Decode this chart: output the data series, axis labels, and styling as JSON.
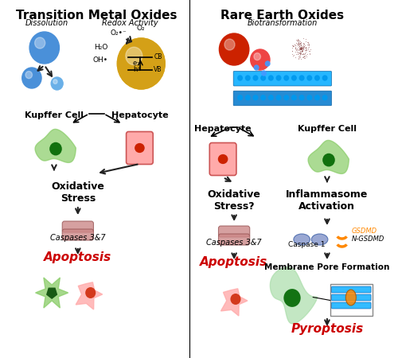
{
  "title_left": "Transition Metal Oxides",
  "title_right": "Rare Earth Oxides",
  "left_italic1": "Dissolution",
  "left_italic2": "Redox Activity",
  "right_italic1": "Biotransformation",
  "kupffer_cell": "Kupffer Cell",
  "hepatocyte": "Hepatocyte",
  "oxidative_stress": "Oxidative\nStress",
  "oxidative_stress_q": "Oxidative\nStress?",
  "inflammasome": "Inflammasome\nActivation",
  "caspases37": "Caspases 3&7",
  "caspase1": "Caspase 1",
  "gsdmd": "GSDMD",
  "ngsdmd": "N-GSDMD",
  "membrane_pore": "Membrane Pore Formation",
  "apoptosis": "Apoptosis",
  "pyroptosis": "Pyroptosis",
  "blue_sphere": "#4a90d9",
  "gold_sphere": "#d4a017",
  "red_sphere": "#cc2200",
  "green_cell": "#66aa44",
  "red_cell_bg": "#ffaaaa",
  "red_nucleus": "#cc2200",
  "green_nucleus": "#006600",
  "arrow_color": "#222222",
  "text_red": "#cc0000",
  "cb_vb_color": "#000000",
  "orange_gsdmd": "#ff8800"
}
